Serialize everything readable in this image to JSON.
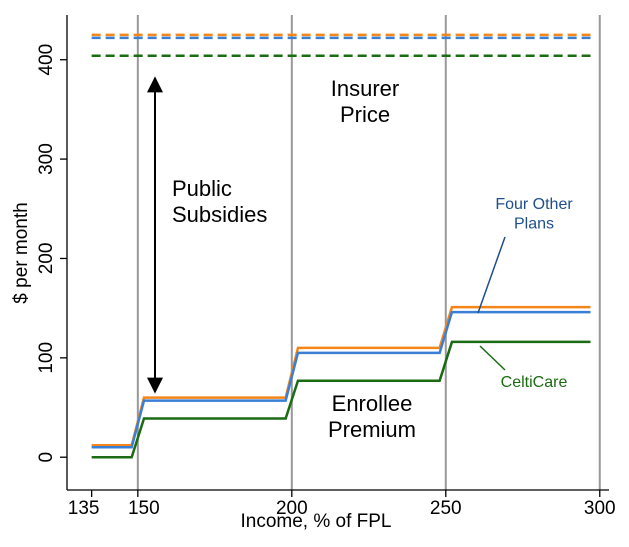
{
  "chart_data": {
    "type": "line",
    "x_label": "Income, % of FPL",
    "y_label": "$ per month",
    "x": [
      135,
      148,
      152,
      198,
      202,
      248,
      252,
      297
    ],
    "series": [
      {
        "color": "#f58518",
        "style": "dashed",
        "values": [
          425,
          425,
          425,
          425,
          425,
          425,
          425,
          425
        ]
      },
      {
        "color": "#3a7fd5",
        "style": "dashed",
        "values": [
          422,
          422,
          422,
          422,
          422,
          422,
          422,
          422
        ]
      },
      {
        "color": "#1a6b12",
        "style": "dashed",
        "values": [
          404,
          404,
          404,
          404,
          404,
          404,
          404,
          404
        ]
      },
      {
        "color": "#f58518",
        "style": "solid",
        "values": [
          12,
          12,
          60,
          60,
          110,
          110,
          151,
          151
        ]
      },
      {
        "color": "#3a7fd5",
        "style": "solid",
        "values": [
          10,
          10,
          57,
          57,
          105,
          105,
          146,
          146
        ]
      },
      {
        "color": "#1a6b12",
        "style": "solid",
        "values": [
          0,
          0,
          39,
          39,
          77,
          77,
          116,
          116
        ]
      }
    ],
    "annotations": [
      {
        "lines": [
          "Insurer",
          "Price"
        ]
      },
      {
        "lines": [
          "Public",
          "Subsidies"
        ]
      },
      {
        "lines": [
          "Enrollee",
          "Premium"
        ]
      },
      {
        "lines": [
          "Four Other",
          "Plans"
        ]
      },
      {
        "lines": [
          "CeltiCare"
        ]
      }
    ],
    "xlim": [
      127,
      303
    ],
    "ylim": [
      -33,
      445
    ],
    "xticks": [
      135,
      150,
      200,
      250,
      300
    ],
    "yticks": [
      0,
      100,
      200,
      300,
      400
    ],
    "grid": "x"
  }
}
